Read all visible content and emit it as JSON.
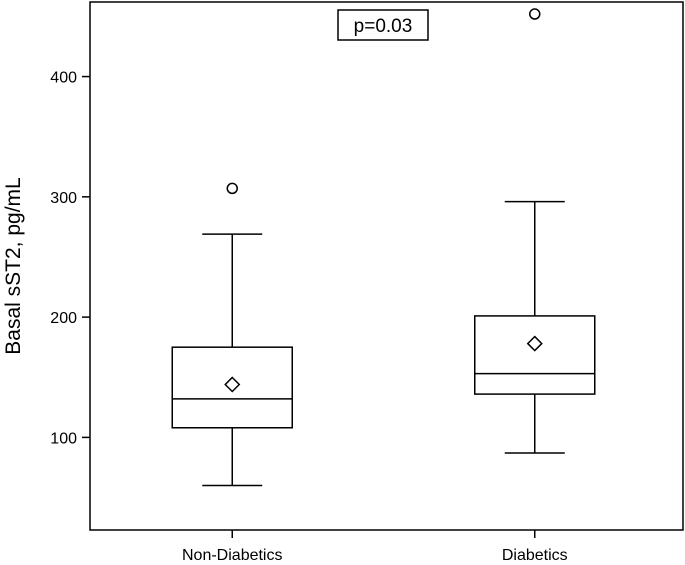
{
  "chart_data": {
    "type": "boxplot",
    "title": "",
    "xlabel": "",
    "ylabel": "Basal sST2, pg/mL",
    "ylim": [
      23,
      462
    ],
    "yticks": [
      100,
      200,
      300,
      400
    ],
    "grid": false,
    "annotation": "p=0.03",
    "categories": [
      "Non-Diabetics",
      "Diabetics"
    ],
    "groups": [
      {
        "category": "Non-Diabetics",
        "min": 60,
        "q1": 108,
        "median": 132,
        "q3": 175,
        "max": 269,
        "mean": 144,
        "outliers": [
          307
        ]
      },
      {
        "category": "Diabetics",
        "min": 87,
        "q1": 136,
        "median": 153,
        "q3": 201,
        "max": 296,
        "mean": 178,
        "outliers": [
          452
        ]
      }
    ]
  }
}
